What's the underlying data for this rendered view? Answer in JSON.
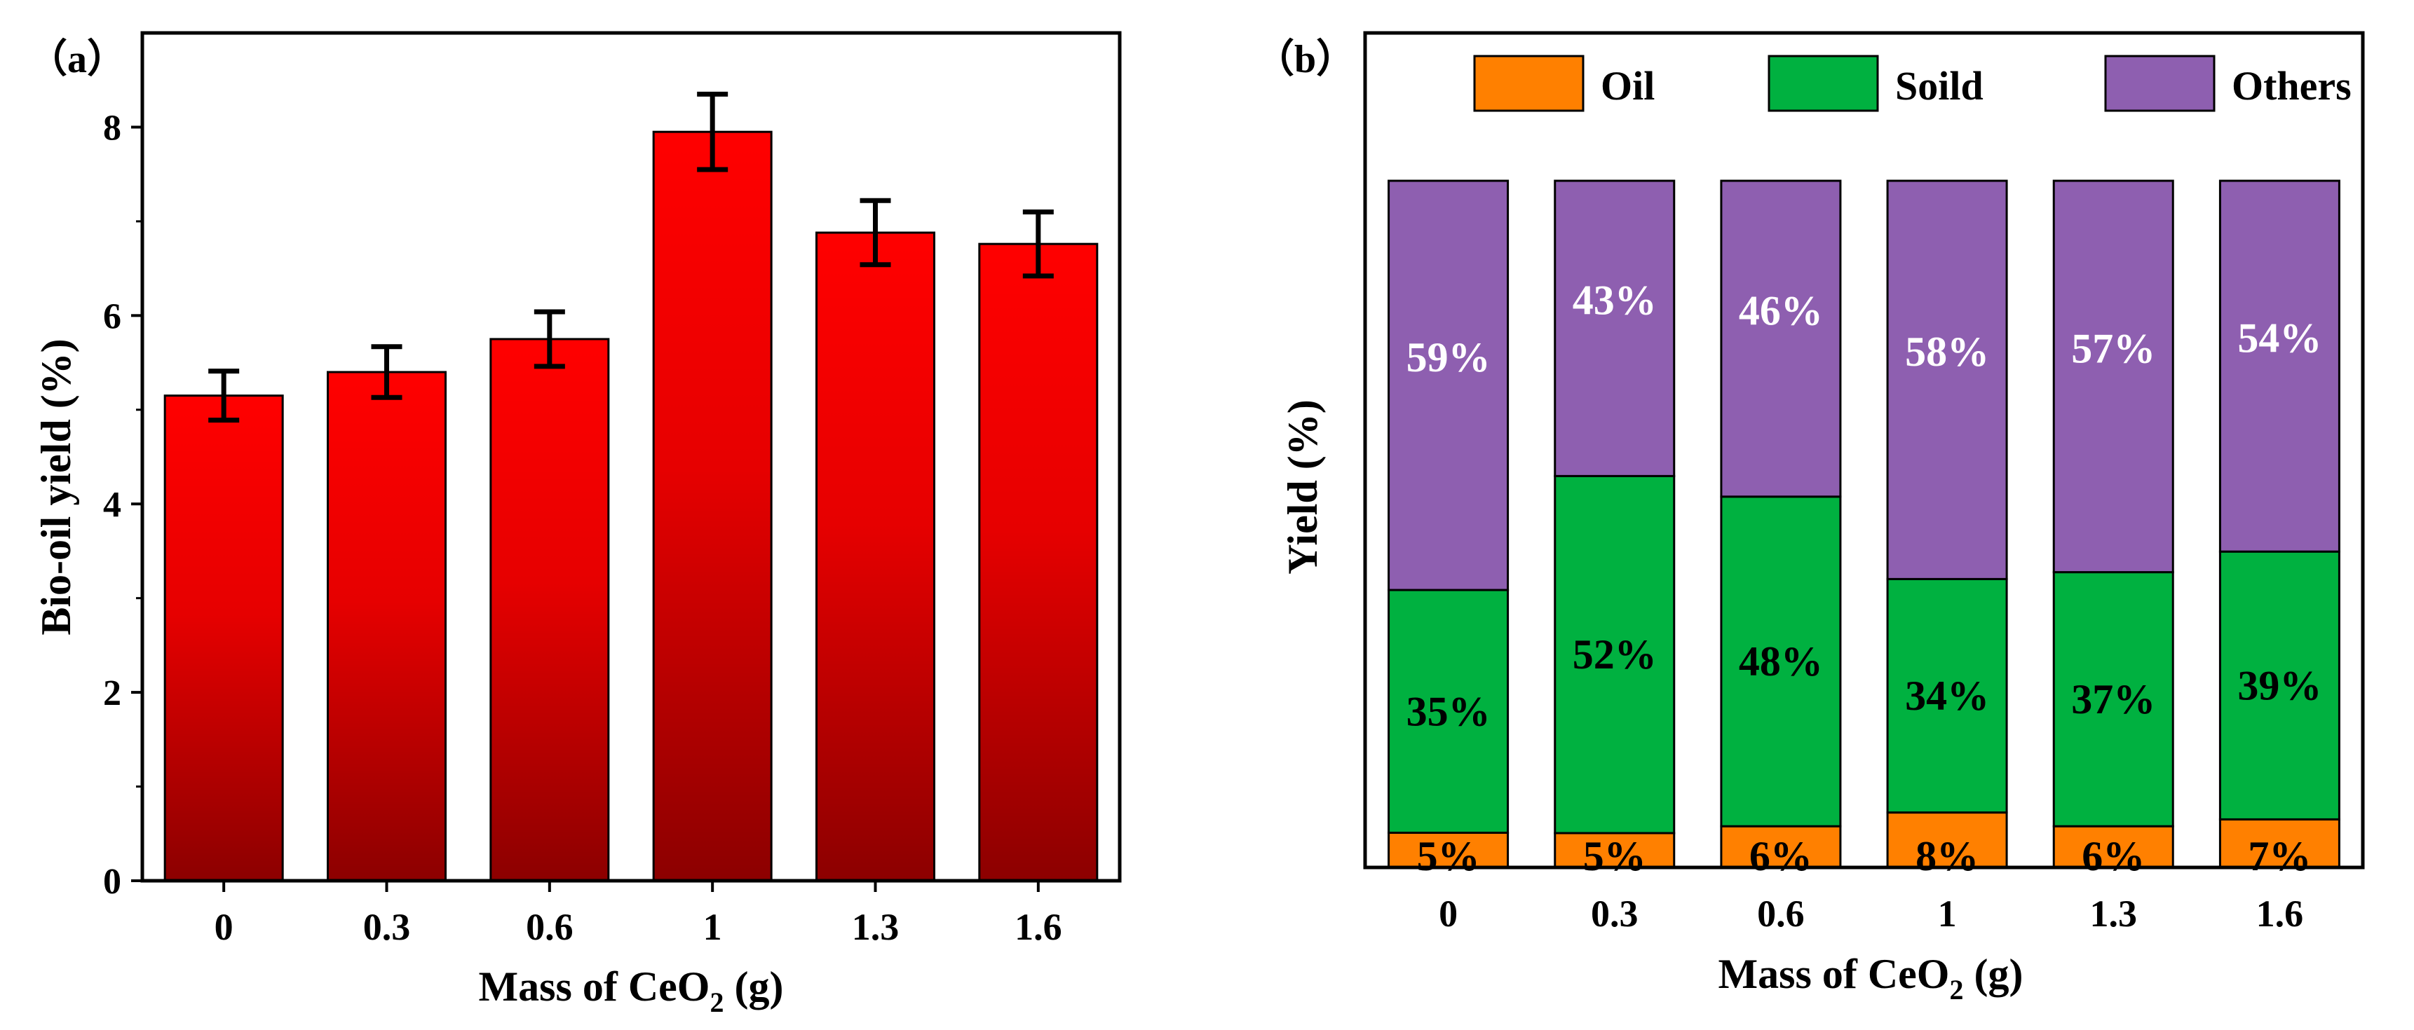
{
  "panels": {
    "a": {
      "label": "（a）"
    },
    "b": {
      "label": "（b）"
    }
  },
  "chart_data": [
    {
      "type": "bar",
      "panel": "(a)",
      "categories": [
        "0",
        "0.3",
        "0.6",
        "1",
        "1.3",
        "1.6"
      ],
      "values": [
        5.15,
        5.4,
        5.75,
        7.95,
        6.88,
        6.76
      ],
      "errors": [
        0.26,
        0.27,
        0.29,
        0.4,
        0.34,
        0.34
      ],
      "bar_color_top": "#ff0000",
      "bar_color_bottom": "#8c0000",
      "ylim": [
        0,
        9
      ],
      "yticks": [
        "0",
        "2",
        "4",
        "6",
        "8"
      ],
      "xlabel": {
        "pre": "Mass of CeO",
        "sub": "2",
        "post": " (g)"
      },
      "ylabel": "Bio-oil yield (%)",
      "title": "",
      "grid": false
    },
    {
      "type": "bar",
      "stacked": true,
      "normalized": true,
      "panel": "(b)",
      "categories": [
        "0",
        "0.3",
        "0.6",
        "1",
        "1.3",
        "1.6"
      ],
      "series": [
        {
          "name": "Oil",
          "color": "#ff8000",
          "values": [
            5,
            5,
            6,
            8,
            6,
            7
          ],
          "labels": [
            "5%",
            "5%",
            "6%",
            "8%",
            "6%",
            "7%"
          ],
          "label_color": "#000000"
        },
        {
          "name": "Soild",
          "color": "#00b140",
          "values": [
            35,
            52,
            48,
            34,
            37,
            39
          ],
          "labels": [
            "35%",
            "52%",
            "48%",
            "34%",
            "37%",
            "39%"
          ],
          "label_color": "#000000"
        },
        {
          "name": "Others",
          "color": "#8e5fb0",
          "values": [
            59,
            43,
            46,
            58,
            57,
            54
          ],
          "labels": [
            "59%",
            "43%",
            "46%",
            "58%",
            "57%",
            "54%"
          ],
          "label_color": "#ffffff"
        }
      ],
      "xlabel": {
        "pre": "Mass of CeO",
        "sub": "2",
        "post": " (g)"
      },
      "ylabel": "Yield (%)",
      "legend": "top",
      "title": "",
      "grid": false
    }
  ]
}
